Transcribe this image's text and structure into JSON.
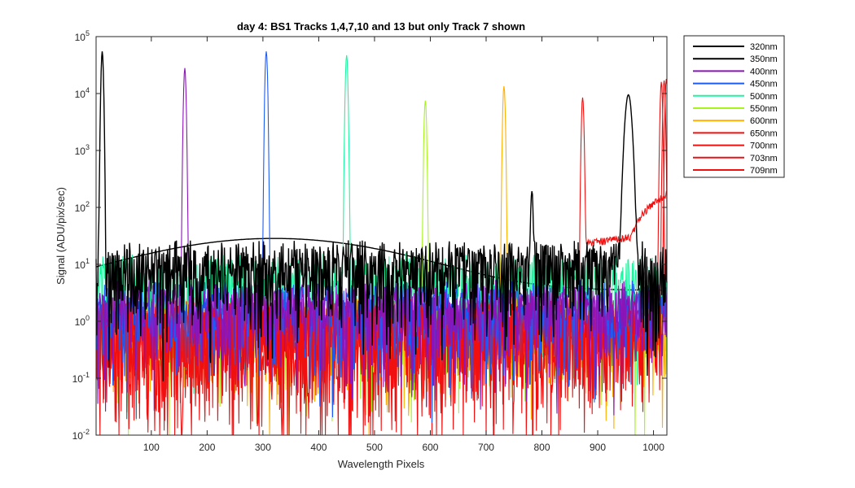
{
  "chart_data": {
    "type": "line",
    "title": "day 4: BS1   Tracks 1,4,7,10 and 13 but only Track 7 shown",
    "xlabel": "Wavelength Pixels",
    "ylabel": "Signal (ADU/pix/sec)",
    "xlim": [
      1,
      1024
    ],
    "ylim": [
      0.01,
      100000
    ],
    "yscale": "log",
    "grid": false,
    "legend_position": "outside-top-right",
    "x_ticks": [
      100,
      200,
      300,
      400,
      500,
      600,
      700,
      800,
      900,
      1000
    ],
    "y_ticks": [
      {
        "base": "10",
        "exp": "-2",
        "value": 0.01
      },
      {
        "base": "10",
        "exp": "-1",
        "value": 0.1
      },
      {
        "base": "10",
        "exp": "0",
        "value": 1
      },
      {
        "base": "10",
        "exp": "1",
        "value": 10
      },
      {
        "base": "10",
        "exp": "2",
        "value": 100
      },
      {
        "base": "10",
        "exp": "3",
        "value": 1000
      },
      {
        "base": "10",
        "exp": "4",
        "value": 10000
      },
      {
        "base": "10",
        "exp": "5",
        "value": 100000
      }
    ],
    "series": [
      {
        "name": "320nm",
        "color": "#000000",
        "noise_level": 3.5,
        "peaks": []
      },
      {
        "name": "350nm",
        "color": "#000000",
        "noise_level": 15,
        "peaks": [
          {
            "x": 12,
            "y": 55000
          },
          {
            "x": 782,
            "y": 190
          },
          {
            "x": 955,
            "y": 9500
          }
        ]
      },
      {
        "name": "400nm",
        "color": "#8a14b8",
        "noise_level": 3,
        "peaks": [
          {
            "x": 160,
            "y": 28000
          }
        ]
      },
      {
        "name": "450nm",
        "color": "#1a5cf5",
        "noise_level": 3,
        "peaks": [
          {
            "x": 306,
            "y": 55000
          }
        ]
      },
      {
        "name": "500nm",
        "color": "#1ef5a0",
        "noise_level": 9,
        "peaks": [
          {
            "x": 450,
            "y": 47000
          }
        ]
      },
      {
        "name": "550nm",
        "color": "#a8f51e",
        "noise_level": 1.5,
        "peaks": [
          {
            "x": 591,
            "y": 7500
          }
        ]
      },
      {
        "name": "600nm",
        "color": "#ffb000",
        "noise_level": 1.5,
        "peaks": [
          {
            "x": 732,
            "y": 13500
          }
        ]
      },
      {
        "name": "650nm",
        "color": "#f01010",
        "noise_level": 1.5,
        "peaks": [
          {
            "x": 873,
            "y": 8500
          }
        ]
      },
      {
        "name": "700nm",
        "color": "#f01010",
        "noise_level": 1.5,
        "peaks": [
          {
            "x": 1014,
            "y": 16000
          }
        ]
      },
      {
        "name": "703nm",
        "color": "#f01010",
        "noise_level": 1.5,
        "peaks": [
          {
            "x": 1019,
            "y": 17000
          }
        ]
      },
      {
        "name": "709nm",
        "color": "#f01010",
        "noise_level": 1.5,
        "peaks": [
          {
            "x": 1023,
            "y": 18000
          }
        ]
      }
    ]
  }
}
